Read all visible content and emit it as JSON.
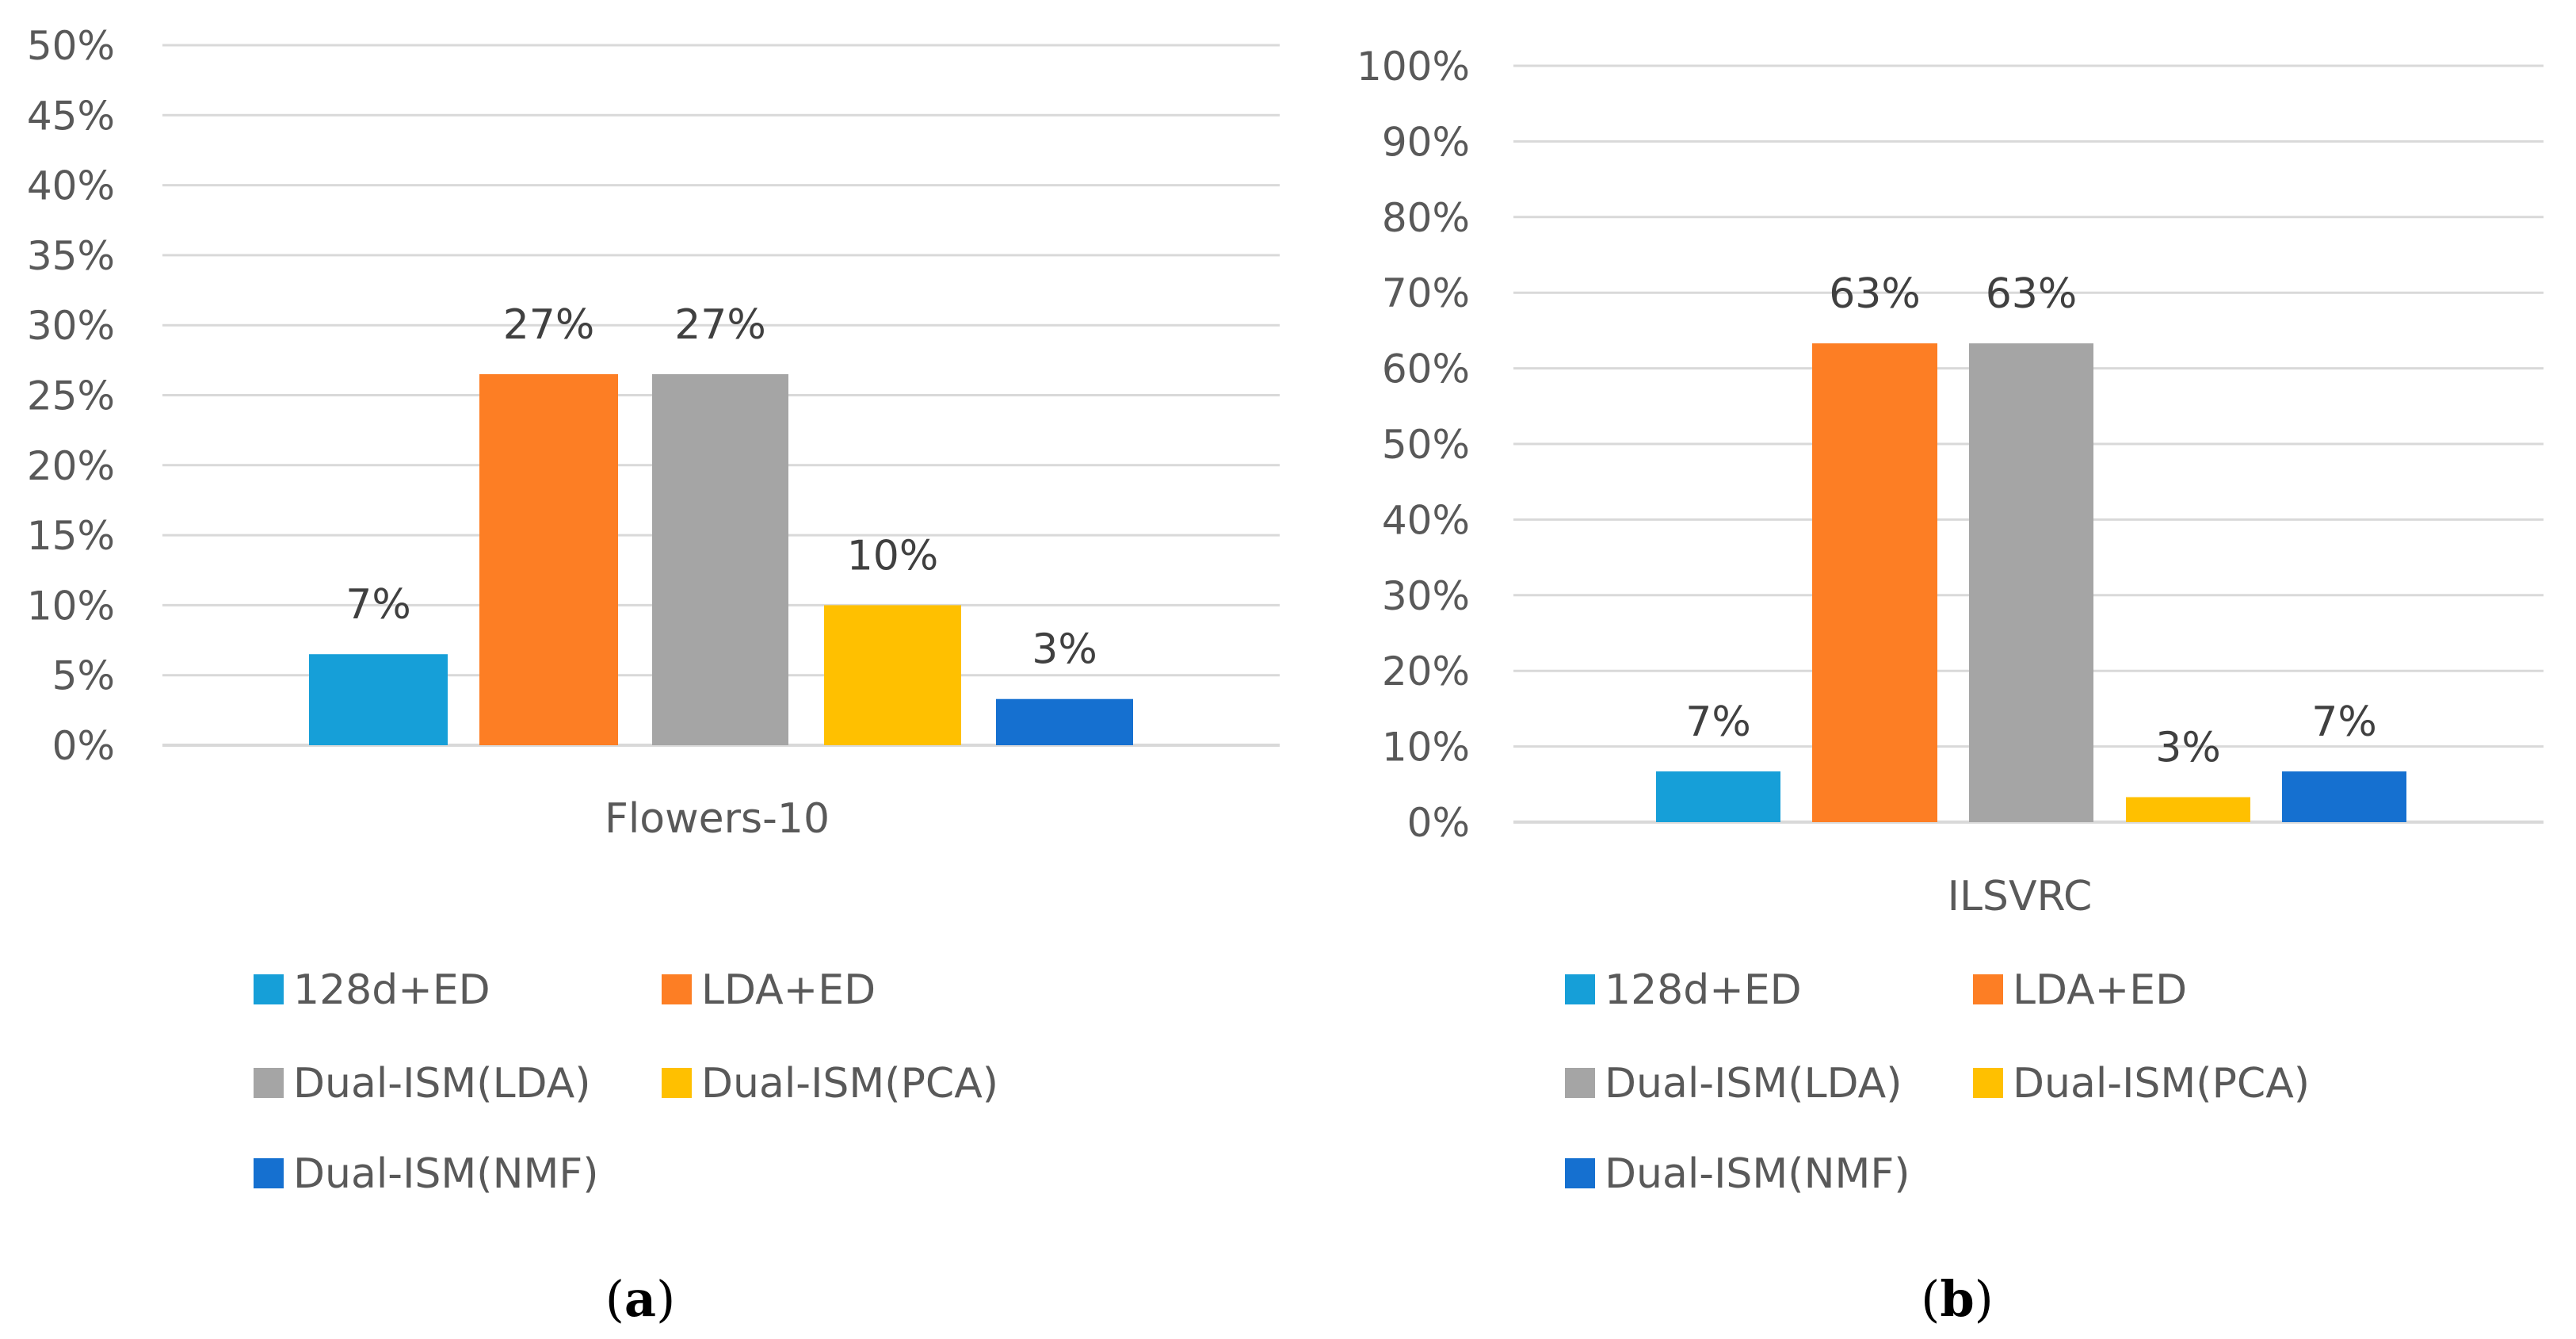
{
  "chart_data": [
    {
      "type": "bar",
      "panel_label": "a",
      "categories": [
        "Flowers-10"
      ],
      "series": [
        {
          "name": "128d+ED",
          "values": [
            6.5
          ],
          "label": "7%",
          "color": "#169fd8"
        },
        {
          "name": "LDA+ED",
          "values": [
            26.5
          ],
          "label": "27%",
          "color": "#fd7e24"
        },
        {
          "name": "Dual-ISM(LDA)",
          "values": [
            26.5
          ],
          "label": "27%",
          "color": "#a5a5a5"
        },
        {
          "name": "Dual-ISM(PCA)",
          "values": [
            10
          ],
          "label": "10%",
          "color": "#ffc000"
        },
        {
          "name": "Dual-ISM(NMF)",
          "values": [
            3.3
          ],
          "label": "3%",
          "color": "#1570d0"
        }
      ],
      "yticks": [
        "0%",
        "5%",
        "10%",
        "15%",
        "20%",
        "25%",
        "30%",
        "35%",
        "40%",
        "45%",
        "50%"
      ],
      "ylim": [
        0,
        50
      ],
      "legend_position": "bottom",
      "grid": true
    },
    {
      "type": "bar",
      "panel_label": "b",
      "categories": [
        "ILSVRC"
      ],
      "series": [
        {
          "name": "128d+ED",
          "values": [
            6.7
          ],
          "label": "7%",
          "color": "#169fd8"
        },
        {
          "name": "LDA+ED",
          "values": [
            63.3
          ],
          "label": "63%",
          "color": "#fd7e24"
        },
        {
          "name": "Dual-ISM(LDA)",
          "values": [
            63.3
          ],
          "label": "63%",
          "color": "#a5a5a5"
        },
        {
          "name": "Dual-ISM(PCA)",
          "values": [
            3.3
          ],
          "label": "3%",
          "color": "#ffc000"
        },
        {
          "name": "Dual-ISM(NMF)",
          "values": [
            6.7
          ],
          "label": "7%",
          "color": "#1570d0"
        }
      ],
      "yticks": [
        "0%",
        "10%",
        "20%",
        "30%",
        "40%",
        "50%",
        "60%",
        "70%",
        "80%",
        "90%",
        "100%"
      ],
      "ylim": [
        0,
        100
      ],
      "legend_position": "bottom",
      "grid": true
    }
  ]
}
